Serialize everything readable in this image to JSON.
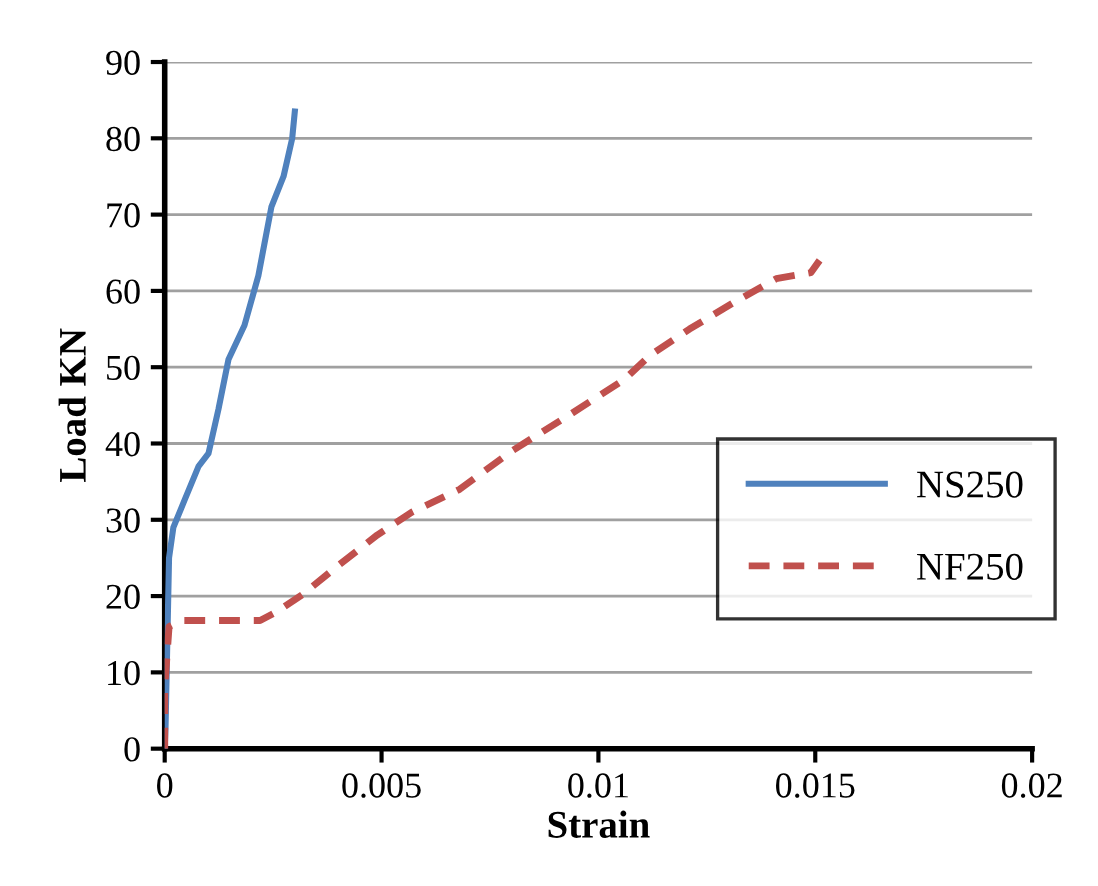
{
  "chart_data": {
    "type": "line",
    "xlabel": "Strain",
    "ylabel": "Load KN",
    "xlim": [
      0,
      0.02
    ],
    "xticks": [
      0,
      0.005,
      0.01,
      0.015,
      0.02
    ],
    "ylim": [
      0,
      90
    ],
    "yticks": [
      0,
      10,
      20,
      30,
      40,
      50,
      60,
      70,
      80,
      90
    ],
    "grid": "y",
    "legend": "right",
    "tick_labels": true,
    "series": [
      {
        "name": "NS250",
        "color": "#4f81bd",
        "line_style": "solid",
        "x": [
          0,
          2e-05,
          0.0001,
          0.0002,
          0.00046,
          0.00078,
          0.00101,
          0.00124,
          0.00147,
          0.00184,
          0.00216,
          0.00246,
          0.00274,
          0.00294,
          0.003
        ],
        "values": [
          0,
          3,
          25,
          29,
          32.6,
          37,
          38.7,
          44.5,
          51,
          55.5,
          62,
          71,
          75,
          80,
          83.5
        ]
      },
      {
        "name": "NF250",
        "color": "#c0504d",
        "line_style": "dashed",
        "x": [
          0,
          0,
          0.0001,
          0.0004,
          0.0022,
          0.0026,
          0.0032,
          0.004,
          0.0049,
          0.0057,
          0.0068,
          0.008,
          0.0094,
          0.0106,
          0.0112,
          0.0121,
          0.0131,
          0.0141,
          0.0149,
          0.0151
        ],
        "values": [
          0,
          8,
          16,
          16.8,
          16.8,
          18,
          20.3,
          24,
          28,
          31,
          34,
          39,
          44,
          48.4,
          51.6,
          55,
          58.4,
          61.6,
          62.4,
          64
        ]
      }
    ]
  }
}
